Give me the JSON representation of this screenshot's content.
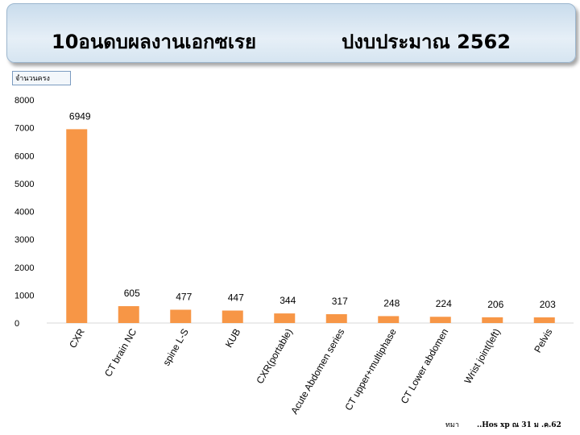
{
  "header": {
    "title_left": "10อนดบผลงานเอกซเรย",
    "title_right": "ปงบประมาณ  2562"
  },
  "unit_label": "จำนวนครง",
  "footer": {
    "left": "ทมา",
    "right": "..Hos xp ณ 31 ม  .ค.62"
  },
  "colors": {
    "bar": "#f79646",
    "title_bg": "#d6e5f1"
  },
  "chart_data": {
    "type": "bar",
    "categories": [
      "CXR",
      "CT brain NC",
      "spine L-S",
      "KUB",
      "CXR(portable)",
      "Acute Abdomen series",
      "CT upper+multiphase",
      "CT Lower abdomen",
      "Wrist joint(left)",
      "Pelvis"
    ],
    "values": [
      6949,
      605,
      477,
      447,
      344,
      317,
      248,
      224,
      206,
      203
    ],
    "ylim": [
      0,
      8000
    ],
    "yticks": [
      0,
      1000,
      2000,
      3000,
      4000,
      5000,
      6000,
      7000,
      8000
    ],
    "grid": false,
    "legend": "none"
  }
}
